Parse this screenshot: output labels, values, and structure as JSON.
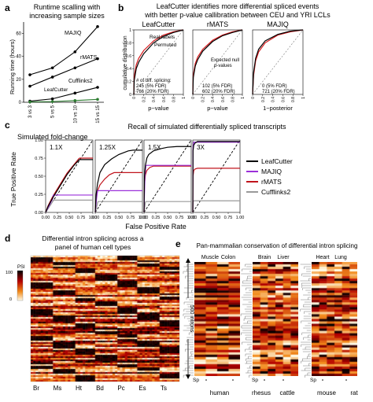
{
  "panel_labels": [
    "a",
    "b",
    "c",
    "d",
    "e"
  ],
  "a": {
    "title_lines": [
      "Runtime scalling with",
      "increasing sample sizes"
    ],
    "ylabel": "Running time (hours)",
    "xticks": [
      "3 vs 3",
      "5 vs 5",
      "10 vs 10",
      "15 vs 15"
    ],
    "yticks": [
      "0",
      "20",
      "40",
      "60"
    ],
    "series_labels": [
      "MAJIQ",
      "rMATS",
      "Cufflinks2",
      "LeafCutter"
    ]
  },
  "b": {
    "title_lines": [
      "LeafCutter identifies more differential spliced events",
      "with better p-value callibration between CEU and YRI LCLs"
    ],
    "ylabel": "cumulative distribution",
    "panels": [
      {
        "title": "LeafCutter",
        "xlabel": "p−value",
        "legend_real": "Real labels",
        "legend_perm": "Permuted",
        "notes": [
          "# of diff. splicing:",
          "245 (5% FDR)",
          "766 (20% FDR)"
        ]
      },
      {
        "title": "rMATS",
        "xlabel": "p−value",
        "null_label": [
          "Expected null",
          "p-values"
        ],
        "notes": [
          "102 (5% FDR)",
          "602 (20% FDR)"
        ]
      },
      {
        "title": "MAJIQ",
        "xlabel": "1−posterior",
        "notes": [
          "0 (5% FDR)",
          "721 (20% FDR)"
        ]
      }
    ]
  },
  "c": {
    "title": "Recall of simulated differentially spliced transcripts",
    "subtitle": "Simulated fold-change",
    "ylabel": "True Positive Rate",
    "xlabel": "False Positive Rate",
    "panels": [
      "1.1X",
      "1.25X",
      "1.5X",
      "3X"
    ],
    "xticks": [
      "0.00",
      "0.25",
      "0.50",
      "0.75",
      "1.00"
    ],
    "yticks": [
      "0.00",
      "0.25",
      "0.50",
      "0.75",
      "1.00"
    ],
    "legend": [
      {
        "label": "LeafCutter",
        "color": "#000000"
      },
      {
        "label": "MAJIQ",
        "color": "#9b30d9"
      },
      {
        "label": "rMATS",
        "color": "#c0141c"
      },
      {
        "label": "Cufflinks2",
        "color": "#9a9a9a"
      }
    ]
  },
  "d": {
    "title_lines": [
      "Differential intron splicing across a",
      "panel of human cell types"
    ],
    "legend_title": "PSI",
    "legend_ticks": [
      "100",
      "0"
    ],
    "side_label": "500 introns",
    "col_labels": [
      "Br",
      "Ms",
      "Ht",
      "Bd",
      "Pc",
      "Es",
      "Ts"
    ]
  },
  "e": {
    "title": "Pan-mammalian conservation of differential intron splicing",
    "top_labels": [
      "Muscle",
      "Colon",
      "Brain",
      "Liver",
      "Heart",
      "Lung"
    ],
    "sp_label": "Sp",
    "species": [
      "human",
      "rhesus",
      "cattle",
      "mouse",
      "rat"
    ]
  },
  "chart_data": [
    {
      "type": "line",
      "title": "Runtime scalling with increasing sample sizes",
      "xlabel": "",
      "ylabel": "Running time (hours)",
      "categories": [
        "3 vs 3",
        "5 vs 5",
        "10 vs 10",
        "15 vs 15"
      ],
      "ylim": [
        0,
        70
      ],
      "series": [
        {
          "name": "MAJIQ",
          "color": "#000000",
          "values": [
            24,
            30,
            44,
            66
          ]
        },
        {
          "name": "rMATS",
          "color": "#000000",
          "values": [
            14,
            22,
            30,
            38
          ]
        },
        {
          "name": "Cufflinks2",
          "color": "#000000",
          "values": [
            1,
            3,
            8,
            13
          ]
        },
        {
          "name": "LeafCutter",
          "color": "#2e7d32",
          "values": [
            0.3,
            0.6,
            1.5,
            2.5
          ]
        }
      ]
    },
    {
      "type": "line",
      "title": "LeafCutter",
      "xlabel": "p−value",
      "ylabel": "cumulative distribution",
      "xlim": [
        0,
        1
      ],
      "ylim": [
        0,
        1
      ],
      "series": [
        {
          "name": "Real labels",
          "color": "#d7191c",
          "x": [
            0,
            0.01,
            0.05,
            0.1,
            0.2,
            0.4,
            0.6,
            0.8,
            1
          ],
          "values": [
            0,
            0.28,
            0.46,
            0.56,
            0.68,
            0.83,
            0.92,
            0.97,
            1
          ]
        },
        {
          "name": "Permuted",
          "color": "#000000",
          "x": [
            0,
            0.01,
            0.05,
            0.1,
            0.2,
            0.4,
            0.6,
            0.8,
            1
          ],
          "values": [
            0,
            0.22,
            0.4,
            0.5,
            0.63,
            0.8,
            0.9,
            0.96,
            1
          ]
        }
      ]
    },
    {
      "type": "line",
      "title": "rMATS",
      "xlabel": "p−value",
      "ylabel": "",
      "xlim": [
        0,
        1
      ],
      "ylim": [
        0,
        1
      ],
      "series": [
        {
          "name": "Real labels",
          "color": "#d7191c",
          "x": [
            0,
            0.01,
            0.05,
            0.1,
            0.2,
            0.4,
            0.6,
            0.8,
            1
          ],
          "values": [
            0,
            0.3,
            0.48,
            0.58,
            0.7,
            0.84,
            0.92,
            0.97,
            1
          ]
        },
        {
          "name": "Permuted",
          "color": "#000000",
          "x": [
            0,
            0.01,
            0.05,
            0.1,
            0.2,
            0.4,
            0.6,
            0.8,
            1
          ],
          "values": [
            0,
            0.26,
            0.44,
            0.54,
            0.67,
            0.82,
            0.91,
            0.96,
            1
          ]
        }
      ]
    },
    {
      "type": "line",
      "title": "MAJIQ",
      "xlabel": "1−posterior",
      "ylabel": "",
      "xlim": [
        0,
        1
      ],
      "ylim": [
        0,
        1
      ],
      "series": [
        {
          "name": "Real labels",
          "color": "#d7191c",
          "x": [
            0,
            0.02,
            0.06,
            0.12,
            0.25,
            0.5,
            0.75,
            1
          ],
          "values": [
            0,
            0.3,
            0.52,
            0.66,
            0.8,
            0.92,
            0.97,
            1
          ]
        },
        {
          "name": "Permuted",
          "color": "#000000",
          "x": [
            0,
            0.02,
            0.06,
            0.12,
            0.25,
            0.5,
            0.75,
            1
          ],
          "values": [
            0,
            0.34,
            0.56,
            0.7,
            0.83,
            0.93,
            0.98,
            1
          ]
        }
      ]
    },
    {
      "type": "line",
      "title": "1.1X",
      "xlabel": "False Positive Rate",
      "ylabel": "True Positive Rate",
      "xlim": [
        0,
        1
      ],
      "ylim": [
        0,
        1
      ],
      "series": [
        {
          "name": "LeafCutter",
          "color": "#000000",
          "x": [
            0,
            0.05,
            0.15,
            0.3,
            0.45,
            0.6,
            0.7,
            0.72,
            1
          ],
          "values": [
            0,
            0.08,
            0.2,
            0.36,
            0.52,
            0.65,
            0.72,
            0.73,
            0.73
          ]
        },
        {
          "name": "MAJIQ",
          "color": "#9b30d9",
          "x": [
            0,
            0.15,
            0.16,
            1
          ],
          "values": [
            0,
            0.19,
            0.24,
            0.24
          ]
        },
        {
          "name": "rMATS",
          "color": "#c0141c",
          "x": [
            0,
            0.05,
            0.15,
            0.3,
            0.45,
            0.6,
            0.7,
            0.72,
            1
          ],
          "values": [
            0,
            0.09,
            0.22,
            0.38,
            0.54,
            0.66,
            0.74,
            0.75,
            0.75
          ]
        },
        {
          "name": "Cufflinks2",
          "color": "#9a9a9a",
          "x": [
            0,
            0.15,
            0.16,
            1
          ],
          "values": [
            0,
            0.15,
            0.17,
            0.17
          ]
        }
      ]
    },
    {
      "type": "line",
      "title": "1.25X",
      "xlabel": "False Positive Rate",
      "ylabel": "True Positive Rate",
      "xlim": [
        0,
        1
      ],
      "ylim": [
        0,
        1
      ],
      "series": [
        {
          "name": "LeafCutter",
          "color": "#000000",
          "x": [
            0,
            0.02,
            0.05,
            0.1,
            0.2,
            0.35,
            0.5,
            0.7,
            0.8,
            1
          ],
          "values": [
            0,
            0.25,
            0.4,
            0.55,
            0.66,
            0.74,
            0.8,
            0.85,
            0.86,
            0.86
          ]
        },
        {
          "name": "MAJIQ",
          "color": "#9b30d9",
          "x": [
            0,
            0.03,
            0.05,
            1
          ],
          "values": [
            0,
            0.2,
            0.3,
            0.3
          ]
        },
        {
          "name": "rMATS",
          "color": "#c0141c",
          "x": [
            0,
            0.02,
            0.05,
            0.1,
            0.2,
            0.3,
            0.4,
            1
          ],
          "values": [
            0,
            0.2,
            0.3,
            0.38,
            0.46,
            0.52,
            0.55,
            0.55
          ]
        },
        {
          "name": "Cufflinks2",
          "color": "#9a9a9a",
          "x": [
            0,
            0.05,
            0.06,
            1
          ],
          "values": [
            0,
            0.13,
            0.15,
            0.15
          ]
        }
      ]
    },
    {
      "type": "line",
      "title": "1.5X",
      "xlabel": "False Positive Rate",
      "ylabel": "True Positive Rate",
      "xlim": [
        0,
        1
      ],
      "ylim": [
        0,
        1
      ],
      "series": [
        {
          "name": "LeafCutter",
          "color": "#000000",
          "x": [
            0,
            0.01,
            0.03,
            0.06,
            0.1,
            0.2,
            0.35,
            0.5,
            0.7,
            1
          ],
          "values": [
            0,
            0.5,
            0.65,
            0.75,
            0.8,
            0.85,
            0.88,
            0.9,
            0.91,
            0.91
          ]
        },
        {
          "name": "MAJIQ",
          "color": "#9b30d9",
          "x": [
            0,
            0.02,
            0.04,
            1
          ],
          "values": [
            0,
            0.5,
            0.65,
            0.65
          ]
        },
        {
          "name": "rMATS",
          "color": "#c0141c",
          "x": [
            0,
            0.01,
            0.03,
            0.06,
            0.12,
            0.2,
            1
          ],
          "values": [
            0,
            0.4,
            0.52,
            0.58,
            0.62,
            0.64,
            0.64
          ]
        },
        {
          "name": "Cufflinks2",
          "color": "#9a9a9a",
          "x": [
            0,
            0.03,
            0.04,
            1
          ],
          "values": [
            0,
            0.14,
            0.15,
            0.15
          ]
        }
      ]
    },
    {
      "type": "line",
      "title": "3X",
      "xlabel": "False Positive Rate",
      "ylabel": "True Positive Rate",
      "xlim": [
        0,
        1
      ],
      "ylim": [
        0,
        1
      ],
      "series": [
        {
          "name": "LeafCutter",
          "color": "#000000",
          "x": [
            0,
            0.005,
            0.02,
            0.05,
            0.1,
            1
          ],
          "values": [
            0,
            0.85,
            0.93,
            0.96,
            0.98,
            0.98
          ]
        },
        {
          "name": "MAJIQ",
          "color": "#9b30d9",
          "x": [
            0,
            0.005,
            0.02,
            1
          ],
          "values": [
            0,
            0.9,
            0.97,
            0.97
          ]
        },
        {
          "name": "rMATS",
          "color": "#c0141c",
          "x": [
            0,
            0.005,
            0.02,
            0.05,
            0.1,
            1
          ],
          "values": [
            0,
            0.5,
            0.58,
            0.6,
            0.61,
            0.61
          ]
        },
        {
          "name": "Cufflinks2",
          "color": "#9a9a9a",
          "x": [
            0,
            0.01,
            0.02,
            1
          ],
          "values": [
            0,
            0.15,
            0.16,
            0.16
          ]
        }
      ]
    }
  ]
}
